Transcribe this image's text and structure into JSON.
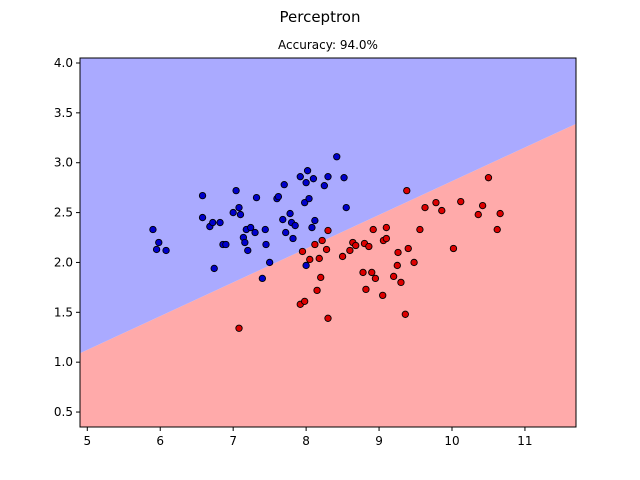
{
  "chart_data": {
    "type": "scatter",
    "title": "Perceptron",
    "subtitle": "Accuracy: 94.0%",
    "xlabel": "",
    "ylabel": "",
    "xlim": [
      4.9,
      11.7
    ],
    "ylim": [
      0.35,
      4.05
    ],
    "xticks": [
      5,
      6,
      7,
      8,
      9,
      10,
      11
    ],
    "yticks": [
      0.5,
      1.0,
      1.5,
      2.0,
      2.5,
      3.0,
      3.5,
      4.0
    ],
    "grid": false,
    "decision_boundary": {
      "points": [
        [
          4.9,
          1.09
        ],
        [
          11.7,
          3.39
        ]
      ],
      "upper_region_color": "#aaaaff",
      "lower_region_color": "#ffaaaa"
    },
    "series": [
      {
        "color": "#0000cc",
        "points": [
          [
            5.9,
            2.33
          ],
          [
            5.95,
            2.13
          ],
          [
            5.98,
            2.2
          ],
          [
            6.08,
            2.12
          ],
          [
            6.58,
            2.67
          ],
          [
            6.58,
            2.45
          ],
          [
            6.68,
            2.36
          ],
          [
            6.72,
            2.4
          ],
          [
            6.74,
            1.94
          ],
          [
            6.82,
            2.4
          ],
          [
            6.86,
            2.18
          ],
          [
            6.9,
            2.18
          ],
          [
            7.0,
            2.5
          ],
          [
            7.04,
            2.72
          ],
          [
            7.08,
            2.55
          ],
          [
            7.1,
            2.48
          ],
          [
            7.14,
            2.25
          ],
          [
            7.16,
            2.2
          ],
          [
            7.18,
            2.33
          ],
          [
            7.2,
            2.12
          ],
          [
            7.24,
            2.35
          ],
          [
            7.3,
            2.3
          ],
          [
            7.32,
            2.65
          ],
          [
            7.4,
            1.84
          ],
          [
            7.44,
            2.33
          ],
          [
            7.45,
            2.18
          ],
          [
            7.5,
            2.0
          ],
          [
            7.6,
            2.64
          ],
          [
            7.62,
            2.66
          ],
          [
            7.68,
            2.43
          ],
          [
            7.7,
            2.78
          ],
          [
            7.72,
            2.3
          ],
          [
            7.78,
            2.49
          ],
          [
            7.8,
            2.4
          ],
          [
            7.82,
            2.24
          ],
          [
            7.85,
            2.37
          ],
          [
            7.92,
            2.86
          ],
          [
            7.98,
            2.6
          ],
          [
            8.0,
            2.8
          ],
          [
            8.02,
            2.92
          ],
          [
            8.04,
            2.64
          ],
          [
            8.08,
            2.35
          ],
          [
            8.1,
            2.84
          ],
          [
            8.12,
            2.42
          ],
          [
            8.25,
            2.77
          ],
          [
            8.3,
            2.86
          ],
          [
            8.42,
            3.06
          ],
          [
            8.52,
            2.85
          ],
          [
            8.55,
            2.55
          ],
          [
            8.0,
            1.97
          ]
        ]
      },
      {
        "color": "#dd0000",
        "points": [
          [
            7.08,
            1.34
          ],
          [
            7.92,
            1.58
          ],
          [
            7.95,
            2.11
          ],
          [
            7.98,
            1.61
          ],
          [
            8.05,
            2.03
          ],
          [
            8.12,
            2.18
          ],
          [
            8.15,
            1.72
          ],
          [
            8.18,
            2.04
          ],
          [
            8.2,
            1.85
          ],
          [
            8.22,
            2.22
          ],
          [
            8.28,
            2.13
          ],
          [
            8.3,
            2.32
          ],
          [
            8.3,
            1.44
          ],
          [
            8.5,
            2.06
          ],
          [
            8.6,
            2.12
          ],
          [
            8.64,
            2.2
          ],
          [
            8.68,
            2.17
          ],
          [
            8.78,
            1.9
          ],
          [
            8.8,
            2.19
          ],
          [
            8.82,
            1.73
          ],
          [
            8.86,
            2.16
          ],
          [
            8.9,
            1.9
          ],
          [
            8.92,
            2.33
          ],
          [
            8.95,
            1.84
          ],
          [
            9.05,
            1.67
          ],
          [
            9.06,
            2.22
          ],
          [
            9.1,
            2.35
          ],
          [
            9.1,
            2.24
          ],
          [
            9.2,
            1.86
          ],
          [
            9.25,
            1.97
          ],
          [
            9.26,
            2.1
          ],
          [
            9.36,
            1.48
          ],
          [
            9.38,
            2.72
          ],
          [
            9.4,
            2.14
          ],
          [
            9.48,
            2.0
          ],
          [
            9.56,
            2.33
          ],
          [
            9.63,
            2.55
          ],
          [
            9.78,
            2.6
          ],
          [
            9.86,
            2.52
          ],
          [
            10.02,
            2.14
          ],
          [
            10.12,
            2.61
          ],
          [
            10.36,
            2.48
          ],
          [
            10.42,
            2.57
          ],
          [
            10.5,
            2.85
          ],
          [
            10.62,
            2.33
          ],
          [
            10.66,
            2.49
          ],
          [
            9.3,
            1.8
          ]
        ]
      }
    ]
  }
}
